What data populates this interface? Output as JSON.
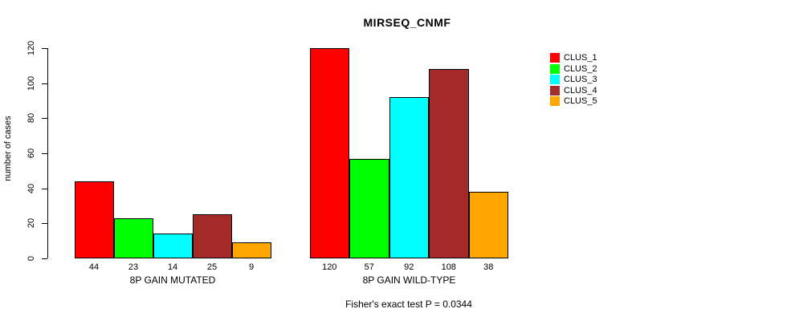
{
  "title": "MIRSEQ_CNMF",
  "footer": "Fisher's exact test P = 0.0344",
  "chart_data": {
    "type": "bar",
    "title": "MIRSEQ_CNMF",
    "xlabel": "",
    "ylabel": "number of cases",
    "ylim": [
      0,
      120
    ],
    "yticks": [
      0,
      20,
      40,
      60,
      80,
      100,
      120
    ],
    "grid": false,
    "legend_position": "right",
    "groups": [
      {
        "label": "8P GAIN MUTATED",
        "values": [
          44,
          23,
          14,
          25,
          9
        ]
      },
      {
        "label": "8P GAIN WILD-TYPE",
        "values": [
          120,
          57,
          92,
          108,
          38
        ]
      }
    ],
    "series": [
      {
        "name": "CLUS_1",
        "color": "#ff0000"
      },
      {
        "name": "CLUS_2",
        "color": "#00ff00"
      },
      {
        "name": "CLUS_3",
        "color": "#00ffff"
      },
      {
        "name": "CLUS_4",
        "color": "#a52a2a"
      },
      {
        "name": "CLUS_5",
        "color": "#ffa500"
      }
    ],
    "annotation": "Fisher's exact test P = 0.0344"
  }
}
